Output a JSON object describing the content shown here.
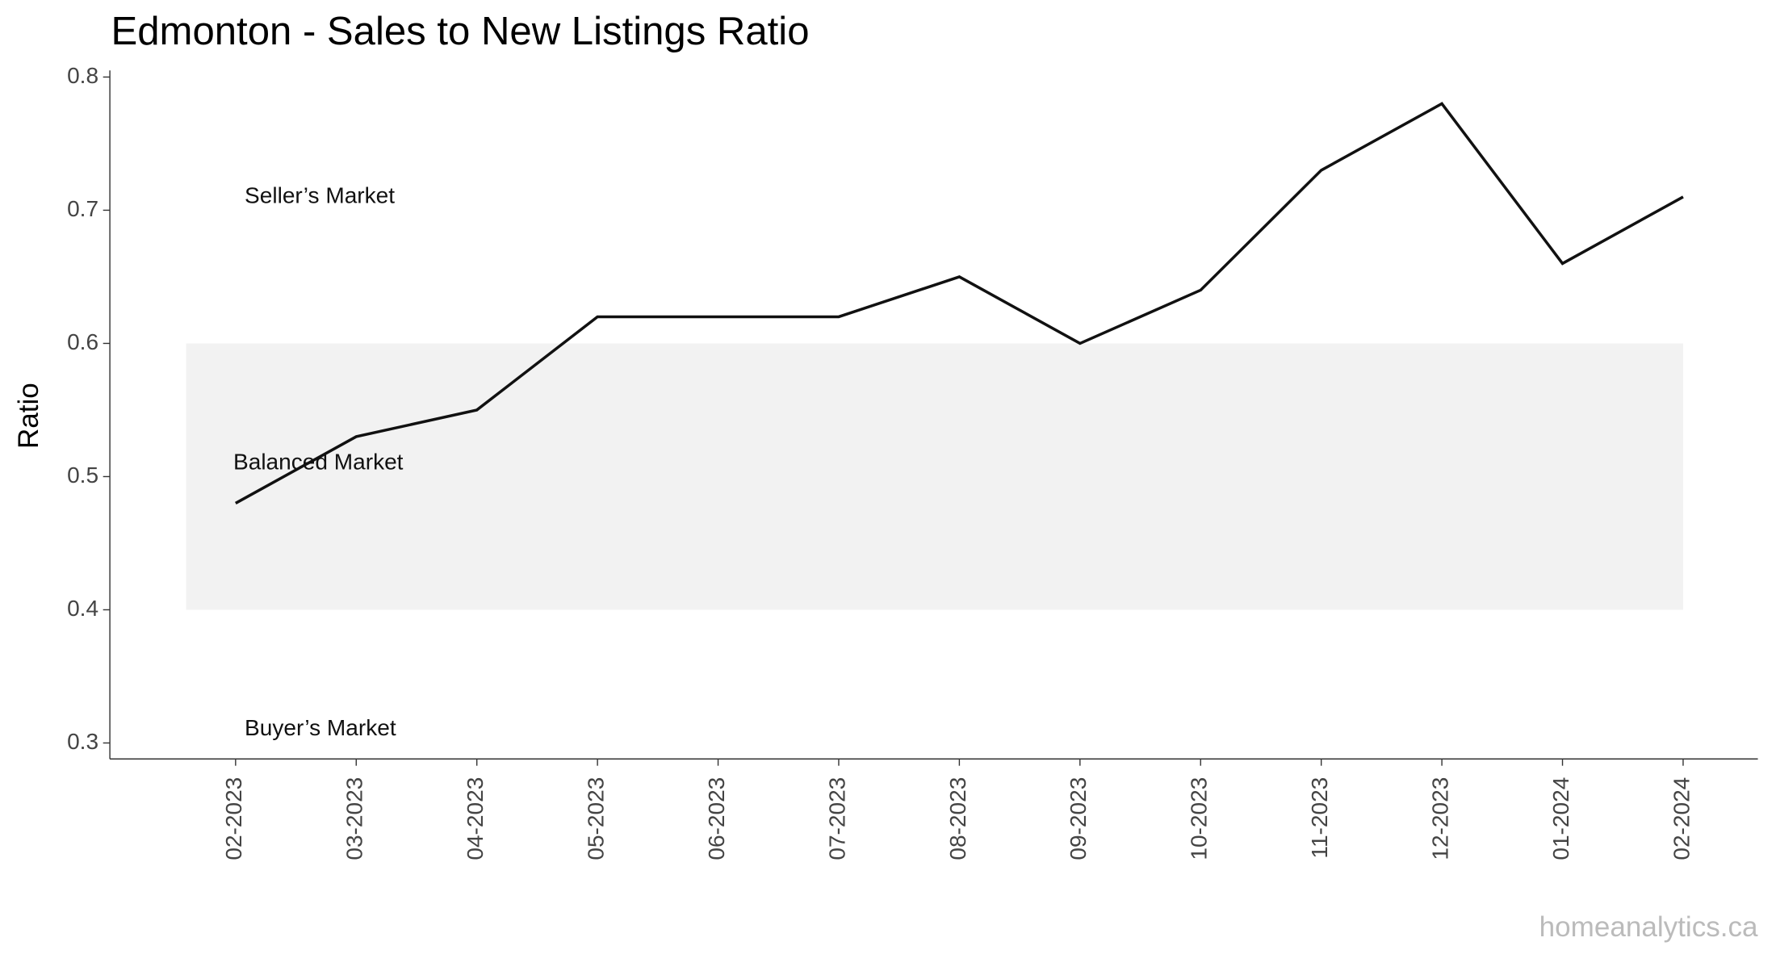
{
  "chart_data": {
    "type": "line",
    "title": "Edmonton - Sales to New Listings Ratio",
    "y_label": "Ratio",
    "categories": [
      "02-2023",
      "03-2023",
      "04-2023",
      "05-2023",
      "06-2023",
      "07-2023",
      "08-2023",
      "09-2023",
      "10-2023",
      "11-2023",
      "12-2023",
      "01-2024",
      "02-2024"
    ],
    "series": [
      {
        "name": "Ratio",
        "color": "#111111",
        "values": [
          0.48,
          0.53,
          0.55,
          0.62,
          0.62,
          0.62,
          0.65,
          0.6,
          0.64,
          0.73,
          0.78,
          0.66,
          0.71
        ]
      }
    ],
    "ylim": [
      0.288,
      0.805
    ],
    "yticks": [
      0.3,
      0.4,
      0.5,
      0.6,
      0.7,
      0.8
    ],
    "band": {
      "ymin": 0.4,
      "ymax": 0.6,
      "color": "#f2f2f2"
    },
    "annotations": [
      "Seller’s Market",
      "Balanced Market",
      "Buyer’s Market"
    ],
    "watermark": "homeanalytics.ca",
    "grid": false
  }
}
